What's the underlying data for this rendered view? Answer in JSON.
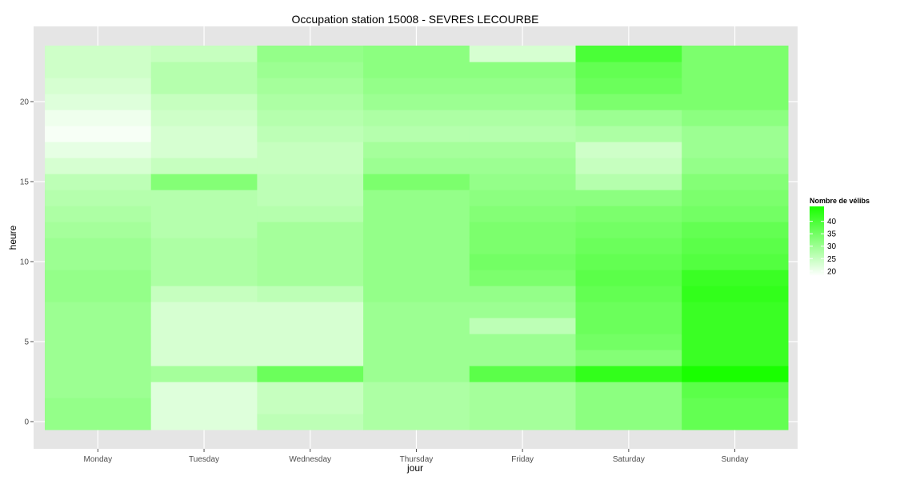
{
  "chart_data": {
    "type": "heatmap",
    "title": "Occupation station 15008 - SEVRES LECOURBE",
    "xlabel": "jour",
    "ylabel": "heure",
    "categories": [
      "Monday",
      "Tuesday",
      "Wednesday",
      "Thursday",
      "Friday",
      "Saturday",
      "Sunday"
    ],
    "y": [
      0,
      1,
      2,
      3,
      4,
      5,
      6,
      7,
      8,
      9,
      10,
      11,
      12,
      13,
      14,
      15,
      16,
      17,
      18,
      19,
      20,
      21,
      22,
      23
    ],
    "ylim": [
      -0.5,
      23.5
    ],
    "yticks": [
      0,
      5,
      10,
      15,
      20
    ],
    "values": [
      [
        31,
        31,
        30,
        30,
        30,
        30,
        30,
        30,
        31,
        31,
        30,
        30,
        29,
        28,
        27,
        26,
        23,
        21,
        19,
        20,
        22,
        23,
        24,
        24
      ],
      [
        22,
        22,
        22,
        29,
        23,
        23,
        23,
        23,
        25,
        28,
        28,
        28,
        27,
        27,
        27,
        33,
        25,
        23,
        23,
        24,
        25,
        27,
        27,
        25
      ],
      [
        26,
        25,
        25,
        36,
        23,
        23,
        23,
        23,
        26,
        29,
        29,
        29,
        29,
        27,
        26,
        26,
        25,
        25,
        26,
        27,
        28,
        29,
        30,
        31
      ],
      [
        28,
        28,
        28,
        30,
        30,
        30,
        30,
        30,
        31,
        31,
        31,
        31,
        31,
        31,
        31,
        34,
        30,
        29,
        27,
        28,
        30,
        31,
        32,
        32
      ],
      [
        29,
        29,
        29,
        38,
        30,
        30,
        26,
        30,
        31,
        34,
        35,
        34,
        34,
        33,
        32,
        31,
        30,
        29,
        27,
        28,
        30,
        31,
        32,
        23
      ],
      [
        32,
        32,
        32,
        43,
        33,
        35,
        36,
        36,
        37,
        38,
        37,
        36,
        35,
        34,
        32,
        27,
        25,
        24,
        28,
        30,
        34,
        36,
        37,
        40
      ],
      [
        37,
        37,
        38,
        46,
        42,
        42,
        42,
        42,
        43,
        42,
        39,
        38,
        37,
        35,
        34,
        33,
        31,
        30,
        30,
        32,
        34,
        34,
        34,
        34
      ]
    ],
    "legend": {
      "title": "Nombre de vélibs",
      "placement": "right",
      "breaks": [
        "40",
        "35",
        "30",
        "25",
        "20"
      ],
      "break_values": [
        40,
        35,
        30,
        25,
        20
      ],
      "min": 18,
      "max": 46,
      "low_color": "#ffffff",
      "high_color": "#19ff00"
    },
    "grid": true,
    "panel_color": "#e5e5e5"
  }
}
